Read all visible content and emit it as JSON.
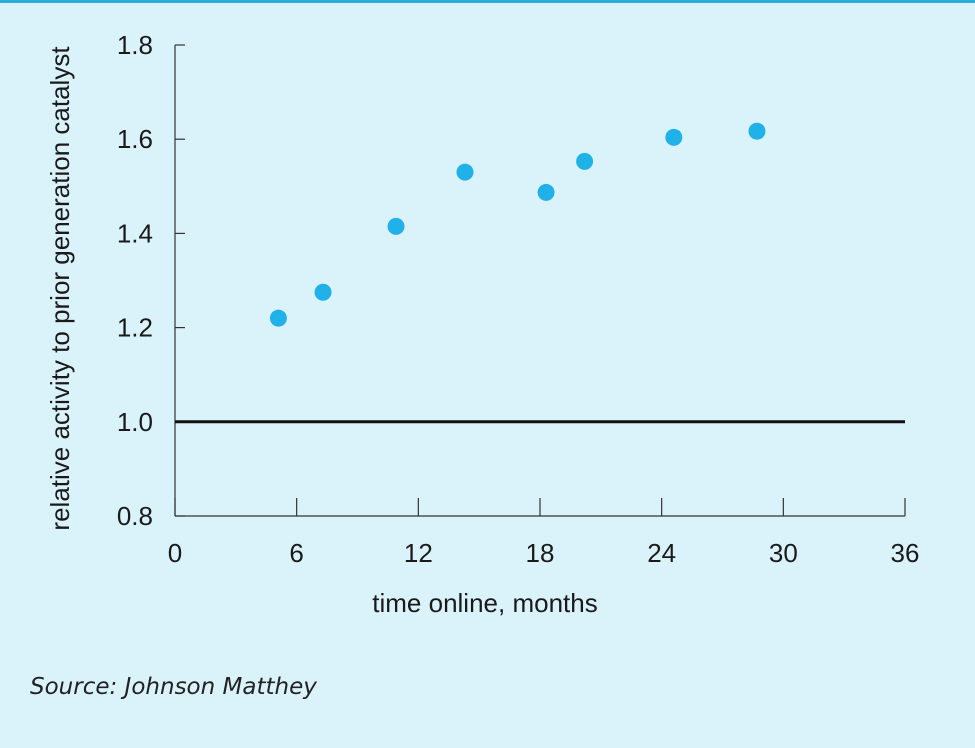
{
  "chart_data": {
    "type": "scatter",
    "title": "",
    "xlabel": "time online, months",
    "ylabel": "relative activity to prior generation catalyst",
    "xlim": [
      0,
      36
    ],
    "ylim": [
      0.8,
      1.8
    ],
    "xticks": [
      0,
      6,
      12,
      18,
      24,
      30,
      36
    ],
    "xtick_labels": [
      "0",
      "6",
      "12",
      "18",
      "24",
      "30",
      "36"
    ],
    "yticks": [
      0.8,
      1.0,
      1.2,
      1.4,
      1.6,
      1.8
    ],
    "ytick_labels": [
      "0.8",
      "1.0",
      "1.2",
      "1.4",
      "1.6",
      "1.8"
    ],
    "reference_line": {
      "y": 1.0
    },
    "grid": false,
    "series": [
      {
        "x": [
          5.1,
          7.3,
          10.9,
          14.3,
          18.3,
          20.2,
          24.6,
          28.7
        ],
        "y": [
          1.22,
          1.275,
          1.415,
          1.53,
          1.487,
          1.553,
          1.604,
          1.617
        ]
      }
    ],
    "colors": {
      "points": "#1fb1e8",
      "reference_line": "#111111",
      "axis": "#333333",
      "background": "#daf3fb"
    }
  },
  "source": "Source: Johnson Matthey"
}
